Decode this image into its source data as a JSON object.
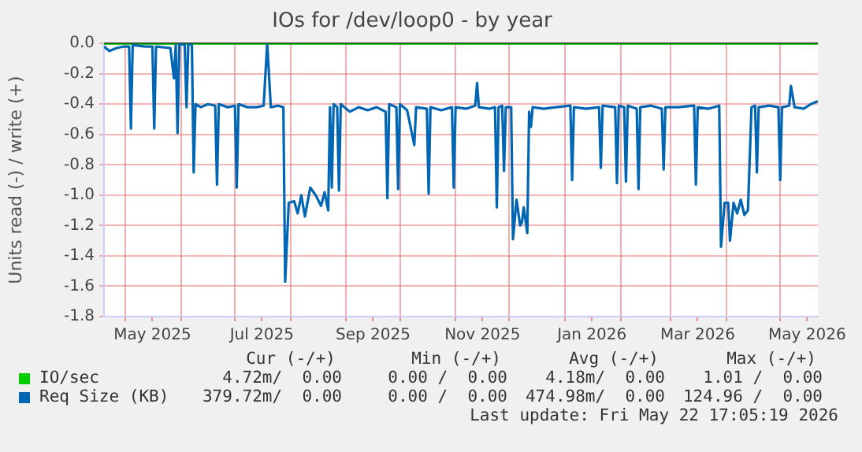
{
  "chart_data": {
    "type": "line",
    "title": "IOs for /dev/loop0 - by year",
    "ylabel": "Units read (-) / write (+)",
    "xlim": [
      "2025-04-19",
      "2026-05-22"
    ],
    "xticks": [
      {
        "value": "2025-05-01",
        "label": null
      },
      {
        "value": "2025-05-16",
        "label": "May 2025"
      },
      {
        "value": "2025-06-01",
        "label": null
      },
      {
        "value": "2025-07-01",
        "label": null
      },
      {
        "value": "2025-07-16",
        "label": "Jul 2025"
      },
      {
        "value": "2025-08-01",
        "label": null
      },
      {
        "value": "2025-09-01",
        "label": null
      },
      {
        "value": "2025-09-16",
        "label": "Sep 2025"
      },
      {
        "value": "2025-10-01",
        "label": null
      },
      {
        "value": "2025-11-01",
        "label": null
      },
      {
        "value": "2025-11-16",
        "label": "Nov 2025"
      },
      {
        "value": "2025-12-01",
        "label": null
      },
      {
        "value": "2026-01-01",
        "label": null
      },
      {
        "value": "2026-01-16",
        "label": "Jan 2026"
      },
      {
        "value": "2026-02-01",
        "label": null
      },
      {
        "value": "2026-03-01",
        "label": null
      },
      {
        "value": "2026-03-16",
        "label": "Mar 2026"
      },
      {
        "value": "2026-04-01",
        "label": null
      },
      {
        "value": "2026-05-01",
        "label": null
      },
      {
        "value": "2026-05-16",
        "label": "May 2026"
      }
    ],
    "ylim": [
      -1.8,
      0.0
    ],
    "yticks": [
      {
        "value": 0,
        "label": "0.0"
      },
      -0.2,
      -0.4,
      -0.6,
      -0.8,
      {
        "value": -1,
        "label": "-1.0"
      },
      -1.2,
      -1.4,
      -1.6,
      -1.8
    ],
    "grid": true,
    "legend": "bottom left",
    "line_style": "solid",
    "marker": "none",
    "ref_lines": [
      {
        "axis": "y",
        "value": 0,
        "color": "#000000"
      }
    ],
    "series": [
      {
        "name": "IO/sec",
        "color": "#00cc00",
        "x": [
          "2025-04-19",
          "2025-07-01",
          "2025-10-01",
          "2026-01-01",
          "2026-05-22"
        ],
        "values": [
          0,
          0,
          0,
          0,
          0
        ]
      },
      {
        "name": "Req Size (KB)",
        "color": "#0066b3",
        "x": [
          "2025-04-19",
          "2025-04-22",
          "2025-04-26",
          "2025-04-30",
          "2025-05-03",
          "2025-05-04",
          "2025-05-05",
          "2025-05-12",
          "2025-05-16",
          "2025-05-17",
          "2025-05-18",
          "2025-05-26",
          "2025-05-28",
          "2025-05-29",
          "2025-05-30",
          "2025-05-31",
          "2025-06-03",
          "2025-06-04",
          "2025-06-05",
          "2025-06-07",
          "2025-06-08",
          "2025-06-09",
          "2025-06-12",
          "2025-06-16",
          "2025-06-20",
          "2025-06-21",
          "2025-06-22",
          "2025-06-27",
          "2025-07-01",
          "2025-07-02",
          "2025-07-03",
          "2025-07-08",
          "2025-07-13",
          "2025-07-17",
          "2025-07-19",
          "2025-07-21",
          "2025-07-25",
          "2025-07-28",
          "2025-07-29",
          "2025-07-31",
          "2025-08-03",
          "2025-08-05",
          "2025-08-07",
          "2025-08-09",
          "2025-08-12",
          "2025-08-15",
          "2025-08-18",
          "2025-08-20",
          "2025-08-22",
          "2025-08-23",
          "2025-08-24",
          "2025-08-25",
          "2025-08-27",
          "2025-08-28",
          "2025-08-29",
          "2025-09-03",
          "2025-09-08",
          "2025-09-13",
          "2025-09-18",
          "2025-09-23",
          "2025-09-24",
          "2025-09-25",
          "2025-09-29",
          "2025-09-30",
          "2025-10-01",
          "2025-10-05",
          "2025-10-09",
          "2025-10-10",
          "2025-10-16",
          "2025-10-17",
          "2025-10-18",
          "2025-10-24",
          "2025-10-30",
          "2025-10-31",
          "2025-11-01",
          "2025-11-07",
          "2025-11-12",
          "2025-11-13",
          "2025-11-14",
          "2025-11-20",
          "2025-11-23",
          "2025-11-24",
          "2025-11-25",
          "2025-11-27",
          "2025-11-28",
          "2025-11-29",
          "2025-12-02",
          "2025-12-03",
          "2025-12-05",
          "2025-12-07",
          "2025-12-08",
          "2025-12-09",
          "2025-12-11",
          "2025-12-12",
          "2025-12-13",
          "2025-12-14",
          "2025-12-20",
          "2025-12-27",
          "2026-01-04",
          "2026-01-05",
          "2026-01-06",
          "2026-01-13",
          "2026-01-20",
          "2026-01-21",
          "2026-01-22",
          "2026-01-29",
          "2026-01-30",
          "2026-01-31",
          "2026-02-03",
          "2026-02-04",
          "2026-02-05",
          "2026-02-10",
          "2026-02-11",
          "2026-02-12",
          "2026-02-18",
          "2026-02-24",
          "2026-02-25",
          "2026-02-26",
          "2026-03-05",
          "2026-03-14",
          "2026-03-15",
          "2026-03-16",
          "2026-03-22",
          "2026-03-28",
          "2026-03-29",
          "2026-03-31",
          "2026-04-02",
          "2026-04-03",
          "2026-04-05",
          "2026-04-07",
          "2026-04-09",
          "2026-04-11",
          "2026-04-13",
          "2026-04-15",
          "2026-04-17",
          "2026-04-18",
          "2026-04-19",
          "2026-04-25",
          "2026-04-30",
          "2026-05-01",
          "2026-05-02",
          "2026-05-06",
          "2026-05-07",
          "2026-05-09",
          "2026-05-14",
          "2026-05-18",
          "2026-05-22"
        ],
        "values": [
          -0.02,
          -0.05,
          -0.03,
          -0.02,
          -0.02,
          -0.56,
          -0.01,
          -0.02,
          -0.02,
          -0.56,
          -0.02,
          -0.03,
          -0.23,
          -0.01,
          -0.59,
          0,
          -0.01,
          -0.42,
          0,
          -0.01,
          -0.85,
          -0.4,
          -0.42,
          -0.4,
          -0.41,
          -0.93,
          -0.4,
          -0.42,
          -0.41,
          -0.95,
          -0.4,
          -0.42,
          -0.42,
          -0.41,
          0,
          -0.42,
          -0.41,
          -0.42,
          -1.57,
          -1.05,
          -1.04,
          -1.12,
          -1,
          -1.14,
          -0.95,
          -1,
          -1.07,
          -0.98,
          -1.1,
          -0.42,
          -0.95,
          -0.4,
          -0.42,
          -0.97,
          -0.4,
          -0.45,
          -0.42,
          -0.44,
          -0.42,
          -0.45,
          -1.02,
          -0.4,
          -0.42,
          -0.96,
          -0.4,
          -0.44,
          -0.67,
          -0.42,
          -0.43,
          -0.99,
          -0.42,
          -0.44,
          -0.42,
          -0.95,
          -0.42,
          -0.43,
          -0.41,
          -0.26,
          -0.42,
          -0.43,
          -0.42,
          -1.08,
          -0.42,
          -0.41,
          -0.84,
          -0.42,
          -0.42,
          -1.29,
          -1.03,
          -1.2,
          -1.18,
          -1.08,
          -1.25,
          -0.45,
          -0.55,
          -0.42,
          -0.43,
          -0.42,
          -0.41,
          -0.9,
          -0.42,
          -0.43,
          -0.42,
          -0.82,
          -0.41,
          -0.42,
          -0.92,
          -0.41,
          -0.42,
          -0.91,
          -0.41,
          -0.43,
          -0.96,
          -0.42,
          -0.41,
          -0.43,
          -0.83,
          -0.42,
          -0.42,
          -0.41,
          -0.93,
          -0.42,
          -0.43,
          -0.41,
          -1.34,
          -1.05,
          -1.05,
          -1.3,
          -1.05,
          -1.12,
          -1.03,
          -1.13,
          -1.1,
          -0.42,
          -0.41,
          -0.85,
          -0.42,
          -0.41,
          -0.42,
          -0.9,
          -0.42,
          -0.41,
          -0.28,
          -0.42,
          -0.43,
          -0.4,
          -0.38
        ]
      }
    ],
    "annotations": [
      "Cur (-/+)",
      "Min (-/+)",
      "Avg (-/+)",
      "Max (-/+)",
      "4.72m/  0.00",
      "0.00 /  0.00",
      "4.18m/  0.00",
      "1.01 /  0.00",
      "379.72m/  0.00",
      "0.00 /  0.00",
      "474.98m/  0.00",
      "124.96 /  0.00",
      "Last update: Fri May 22 17:05:19 2026"
    ]
  }
}
